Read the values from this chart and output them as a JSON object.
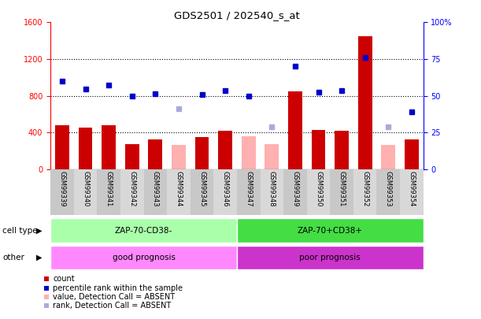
{
  "title": "GDS2501 / 202540_s_at",
  "samples": [
    "GSM99339",
    "GSM99340",
    "GSM99341",
    "GSM99342",
    "GSM99343",
    "GSM99344",
    "GSM99345",
    "GSM99346",
    "GSM99347",
    "GSM99348",
    "GSM99349",
    "GSM99350",
    "GSM99351",
    "GSM99352",
    "GSM99353",
    "GSM99354"
  ],
  "bar_values": [
    480,
    450,
    480,
    270,
    320,
    null,
    350,
    420,
    null,
    null,
    850,
    430,
    420,
    1450,
    null,
    320
  ],
  "bar_absent_values": [
    null,
    null,
    null,
    null,
    null,
    260,
    null,
    null,
    360,
    270,
    null,
    null,
    null,
    null,
    260,
    null
  ],
  "rank_values": [
    960,
    870,
    920,
    800,
    820,
    null,
    810,
    860,
    800,
    null,
    1120,
    840,
    860,
    1220,
    null,
    620
  ],
  "rank_absent_values": [
    null,
    null,
    null,
    null,
    null,
    660,
    null,
    null,
    null,
    460,
    null,
    null,
    null,
    null,
    460,
    null
  ],
  "group1_label": "ZAP-70-CD38-",
  "group2_label": "ZAP-70+CD38+",
  "other1_label": "good prognosis",
  "other2_label": "poor prognosis",
  "cell_type_label": "cell type",
  "other_label": "other",
  "ylim_left": [
    0,
    1600
  ],
  "ylim_right": [
    0,
    100
  ],
  "yticks_left": [
    0,
    400,
    800,
    1200,
    1600
  ],
  "yticks_right": [
    0,
    25,
    50,
    75,
    100
  ],
  "bar_color": "#cc0000",
  "bar_absent_color": "#ffb0b0",
  "rank_color": "#0000cc",
  "rank_absent_color": "#aaaadd",
  "group1_color": "#aaffaa",
  "group2_color": "#44dd44",
  "other1_color": "#ff88ff",
  "other2_color": "#cc33cc",
  "legend_items": [
    {
      "color": "#cc0000",
      "label": "count"
    },
    {
      "color": "#0000cc",
      "label": "percentile rank within the sample"
    },
    {
      "color": "#ffb0b0",
      "label": "value, Detection Call = ABSENT"
    },
    {
      "color": "#aaaadd",
      "label": "rank, Detection Call = ABSENT"
    }
  ]
}
